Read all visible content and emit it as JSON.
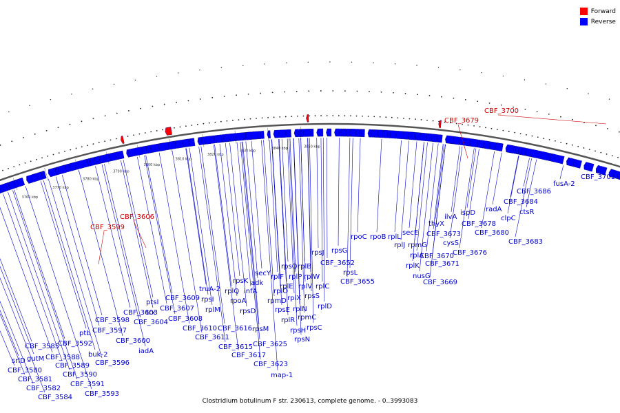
{
  "caption": "Clostridium botulinum F str. 230613, complete genome. - 0..3993083",
  "legend": [
    {
      "label": "Forward",
      "color": "#ff0000"
    },
    {
      "label": "Reverse",
      "color": "#0000ff"
    }
  ],
  "colors": {
    "forward": "#ff0000",
    "reverse": "#0000ff",
    "forward_label": "#cc0000",
    "reverse_label": "#0000cc",
    "backbone": "#555555"
  },
  "ticks": [
    "3760 kbp",
    "3770 kbp",
    "3780 kbp",
    "3790 kbp",
    "3800 kbp",
    "3810 kbp",
    "3820 kbp",
    "3830 kbp",
    "3840 kbp",
    "3850 kbp"
  ],
  "genes": {
    "forward": [
      "CBF_3599",
      "CBF_3606",
      "CBF_3679",
      "CBF_3700"
    ],
    "reverse": [
      "srlD",
      "CBF_3580",
      "gutM",
      "CBF_3581",
      "CBF_3585",
      "CBF_3582",
      "CBF_3584",
      "CBF_3588",
      "CBF_3589",
      "CBF_3590",
      "CBF_3592",
      "ptb",
      "CBF_3591",
      "buk-2",
      "CBF_3593",
      "CBF_3596",
      "CBF_3597",
      "CBF_3598",
      "CBF_3600",
      "iadA",
      "CBF_3603",
      "trx",
      "CBF_3604",
      "ptsI",
      "CBF_3607",
      "CBF_3608",
      "CBF_3609",
      "CBF_3610",
      "CBF_3611",
      "truA-2",
      "rpsI",
      "rplM",
      "rplQ",
      "CBF_3615",
      "CBF_3616",
      "CBF_3617",
      "rpsK",
      "rpoA",
      "adk",
      "infA",
      "rpsD",
      "secY",
      "rpsM",
      "CBF_3625",
      "CBF_3623",
      "map-1",
      "rplO",
      "rpmD",
      "rplF",
      "rpsE",
      "rplE",
      "rpsQ",
      "rplP",
      "rplB",
      "rplW",
      "rplX",
      "rplN",
      "rplR",
      "rpsH",
      "rplV",
      "rpsS",
      "rplC",
      "rpmC",
      "rpsC",
      "rplD",
      "rpsN",
      "rpsJ",
      "CBF_3652",
      "rpsG",
      "rpsL",
      "CBF_3655",
      "rpoC",
      "rpoB",
      "rplL",
      "secE",
      "rplJ",
      "rpmG",
      "rplA",
      "rplK",
      "nusG",
      "CBF_3669",
      "CBF_3670",
      "CBF_3671",
      "thyX",
      "CBF_3673",
      "cysS",
      "ilvA",
      "ispD",
      "CBF_3676",
      "CBF_3678",
      "radA",
      "CBF_3680",
      "clpC",
      "CBF_3684",
      "ctsR",
      "CBF_3683",
      "CBF_3686",
      "fusA-2",
      "CBF_3701"
    ]
  }
}
